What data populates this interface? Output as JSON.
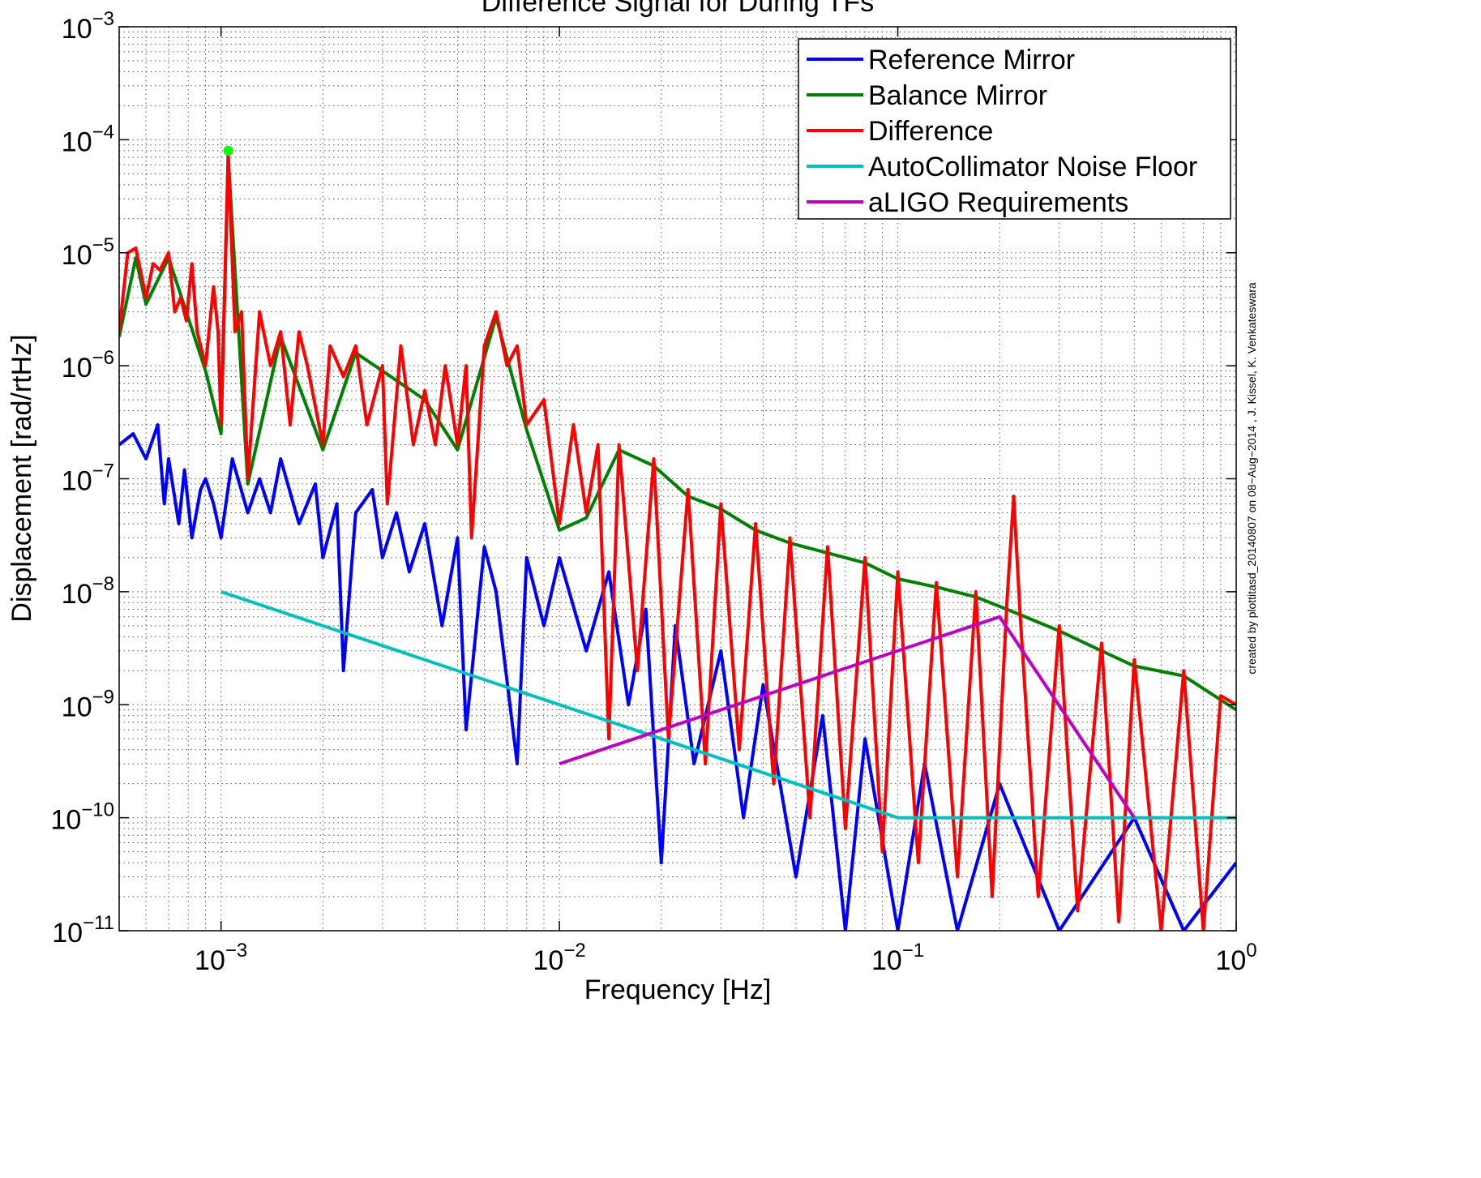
{
  "chart_data": {
    "type": "line",
    "title": "Difference Signal for During TFs",
    "xlabel": "Frequency [Hz]",
    "ylabel": "Displacement [rad/rtHz]",
    "side_note": "created by plottitasd_20140807 on 08−Aug−2014 , J. Kissel, K. Venkateswara",
    "xscale": "log",
    "yscale": "log",
    "grid": true,
    "legend_position": "upper right",
    "xlim": [
      0.0005,
      1
    ],
    "ylim": [
      1e-11,
      0.001
    ],
    "xticks": [
      {
        "value": 0.001,
        "label": "10",
        "power": "−3"
      },
      {
        "value": 0.01,
        "label": "10",
        "power": "−2"
      },
      {
        "value": 0.1,
        "label": "10",
        "power": "−1"
      },
      {
        "value": 1,
        "label": "10",
        "power": "0"
      }
    ],
    "yticks": [
      {
        "value": 1e-11,
        "label": "10",
        "power": "−11"
      },
      {
        "value": 1e-10,
        "label": "10",
        "power": "−10"
      },
      {
        "value": 1e-09,
        "label": "10",
        "power": "−9"
      },
      {
        "value": 1e-08,
        "label": "10",
        "power": "−8"
      },
      {
        "value": 1e-07,
        "label": "10",
        "power": "−7"
      },
      {
        "value": 1e-06,
        "label": "10",
        "power": "−6"
      },
      {
        "value": 1e-05,
        "label": "10",
        "power": "−5"
      },
      {
        "value": 0.0001,
        "label": "10",
        "power": "−4"
      },
      {
        "value": 0.001,
        "label": "10",
        "power": "−3"
      }
    ],
    "xminorticks": [
      0.0006,
      0.0007,
      0.0008,
      0.0009,
      0.002,
      0.003,
      0.004,
      0.005,
      0.006,
      0.007,
      0.008,
      0.009,
      0.02,
      0.03,
      0.04,
      0.05,
      0.06,
      0.07,
      0.08,
      0.09,
      0.2,
      0.3,
      0.4,
      0.5,
      0.6,
      0.7,
      0.8,
      0.9
    ],
    "yminorticks": [
      2e-11,
      3e-11,
      4e-11,
      5e-11,
      6e-11,
      7e-11,
      8e-11,
      9e-11,
      2e-10,
      3e-10,
      4e-10,
      5e-10,
      6e-10,
      7e-10,
      8e-10,
      9e-10,
      2e-09,
      3e-09,
      4e-09,
      5e-09,
      6e-09,
      7e-09,
      8e-09,
      9e-09,
      2e-08,
      3e-08,
      4e-08,
      5e-08,
      6e-08,
      7e-08,
      8e-08,
      9e-08,
      2e-07,
      3e-07,
      4e-07,
      5e-07,
      6e-07,
      7e-07,
      8e-07,
      9e-07,
      2e-06,
      3e-06,
      4e-06,
      5e-06,
      6e-06,
      7e-06,
      8e-06,
      9e-06,
      2e-05,
      3e-05,
      4e-05,
      5e-05,
      6e-05,
      7e-05,
      8e-05,
      9e-05,
      0.0002,
      0.0003,
      0.0004,
      0.0005,
      0.0006,
      0.0007,
      0.0008,
      0.0009
    ],
    "marker": {
      "x": 0.00105,
      "y": 8e-05,
      "color": "#00ff00"
    },
    "series": [
      {
        "name": "Reference Mirror",
        "color": "#0000ff",
        "x": [
          0.0005,
          0.00055,
          0.0006,
          0.00065,
          0.00068,
          0.0007,
          0.00075,
          0.00078,
          0.00082,
          0.00087,
          0.0009,
          0.00095,
          0.001,
          0.00108,
          0.0012,
          0.0013,
          0.0014,
          0.0015,
          0.0017,
          0.0019,
          0.002,
          0.0022,
          0.0023,
          0.0025,
          0.0028,
          0.003,
          0.0033,
          0.0036,
          0.004,
          0.0045,
          0.005,
          0.0053,
          0.006,
          0.0065,
          0.0075,
          0.008,
          0.009,
          0.01,
          0.012,
          0.014,
          0.016,
          0.018,
          0.02,
          0.022,
          0.025,
          0.03,
          0.035,
          0.04,
          0.05,
          0.06,
          0.07,
          0.08,
          0.1,
          0.12,
          0.15,
          0.2,
          0.3,
          0.5,
          0.7,
          1
        ],
        "values": [
          2e-07,
          2.5e-07,
          1.5e-07,
          3e-07,
          6e-08,
          1.5e-07,
          4e-08,
          1.2e-07,
          3e-08,
          8e-08,
          1e-07,
          6e-08,
          3e-08,
          1.5e-07,
          5e-08,
          1e-07,
          5e-08,
          1.5e-07,
          4e-08,
          9e-08,
          2e-08,
          6e-08,
          2e-09,
          5e-08,
          8e-08,
          2e-08,
          5e-08,
          1.5e-08,
          4e-08,
          5e-09,
          3e-08,
          6e-10,
          2.5e-08,
          1e-08,
          3e-10,
          2e-08,
          5e-09,
          2e-08,
          3e-09,
          1.5e-08,
          1e-09,
          7e-09,
          4e-11,
          5e-09,
          3e-10,
          3e-09,
          1e-10,
          1.5e-09,
          3e-11,
          8e-10,
          1e-11,
          5e-10,
          1e-11,
          3e-10,
          1e-11,
          2e-10,
          1e-11,
          1e-10,
          1e-11,
          4e-11
        ]
      },
      {
        "name": "Balance Mirror",
        "color": "#008000",
        "x": [
          0.0005,
          0.00056,
          0.0006,
          0.0007,
          0.0009,
          0.001,
          0.00105,
          0.0012,
          0.0015,
          0.002,
          0.0025,
          0.003,
          0.004,
          0.005,
          0.0065,
          0.008,
          0.01,
          0.012,
          0.015,
          0.019,
          0.024,
          0.03,
          0.038,
          0.048,
          0.062,
          0.08,
          0.1,
          0.13,
          0.17,
          0.21,
          0.3,
          0.4,
          0.5,
          0.7,
          1
        ],
        "values": [
          1.8e-06,
          9e-06,
          3.5e-06,
          9e-06,
          9e-07,
          2.5e-07,
          7e-05,
          9e-08,
          1.8e-06,
          1.8e-07,
          1.3e-06,
          9e-07,
          5e-07,
          1.8e-07,
          2.7e-06,
          2.7e-07,
          3.5e-08,
          4.5e-08,
          1.8e-07,
          1.3e-07,
          7e-08,
          5.4e-08,
          3.5e-08,
          2.7e-08,
          2.2e-08,
          1.8e-08,
          1.3e-08,
          1.1e-08,
          9e-09,
          7e-09,
          4.5e-09,
          3e-09,
          2.2e-09,
          1.8e-09,
          9e-10
        ]
      },
      {
        "name": "Difference",
        "color": "#ff0000",
        "x": [
          0.0005,
          0.00053,
          0.00056,
          0.0006,
          0.00063,
          0.00066,
          0.0007,
          0.00073,
          0.00076,
          0.00079,
          0.00082,
          0.00085,
          0.0009,
          0.00095,
          0.00098,
          0.001,
          0.00105,
          0.0011,
          0.00115,
          0.0012,
          0.0013,
          0.0014,
          0.0015,
          0.0016,
          0.0017,
          0.0018,
          0.002,
          0.0021,
          0.0023,
          0.0025,
          0.0027,
          0.003,
          0.0031,
          0.0034,
          0.0037,
          0.004,
          0.0043,
          0.0046,
          0.005,
          0.0053,
          0.0055,
          0.006,
          0.0065,
          0.007,
          0.0075,
          0.008,
          0.009,
          0.01,
          0.011,
          0.012,
          0.013,
          0.014,
          0.015,
          0.017,
          0.019,
          0.021,
          0.024,
          0.027,
          0.03,
          0.034,
          0.038,
          0.043,
          0.048,
          0.055,
          0.062,
          0.07,
          0.08,
          0.09,
          0.1,
          0.115,
          0.13,
          0.15,
          0.17,
          0.19,
          0.21,
          0.22,
          0.23,
          0.26,
          0.3,
          0.34,
          0.4,
          0.45,
          0.5,
          0.6,
          0.7,
          0.8,
          0.9,
          1
        ],
        "values": [
          2e-06,
          1e-05,
          1.1e-05,
          4e-06,
          8e-06,
          7e-06,
          1e-05,
          3e-06,
          4e-06,
          2.5e-06,
          8e-06,
          2e-06,
          1e-06,
          5e-06,
          2e-06,
          3e-07,
          7.5e-05,
          2e-06,
          3e-06,
          1e-07,
          3e-06,
          1e-06,
          2e-06,
          3e-07,
          2e-06,
          1e-06,
          2e-07,
          1.5e-06,
          8e-07,
          1.5e-06,
          3e-07,
          1e-06,
          6e-08,
          1.5e-06,
          2e-07,
          6e-07,
          2e-07,
          1e-06,
          2e-07,
          1e-06,
          3e-08,
          1.5e-06,
          3e-06,
          1e-06,
          1.5e-06,
          3e-07,
          5e-07,
          4e-08,
          3e-07,
          5e-08,
          2e-07,
          5e-10,
          2e-07,
          2e-09,
          1.5e-07,
          5e-10,
          8e-08,
          3e-10,
          6e-08,
          4e-10,
          4e-08,
          2e-10,
          3e-08,
          1e-10,
          2.5e-08,
          8e-11,
          2e-08,
          5e-11,
          1.5e-08,
          4e-11,
          1.2e-08,
          3e-11,
          1e-08,
          2e-11,
          8e-09,
          7e-08,
          6e-09,
          2e-11,
          5e-09,
          1.5e-11,
          3.5e-09,
          1.2e-11,
          2.5e-09,
          1e-11,
          2e-09,
          1e-11,
          1.2e-09,
          1e-09
        ]
      },
      {
        "name": "AutoCollimator Noise Floor",
        "color": "#00bfbf",
        "x": [
          0.001,
          0.1,
          1
        ],
        "values": [
          1e-08,
          1e-10,
          1e-10
        ]
      },
      {
        "name": "aLIGO Requirements",
        "color": "#bf00bf",
        "x": [
          0.01,
          0.2,
          0.5
        ],
        "values": [
          3e-10,
          6e-09,
          1e-10
        ]
      }
    ]
  }
}
